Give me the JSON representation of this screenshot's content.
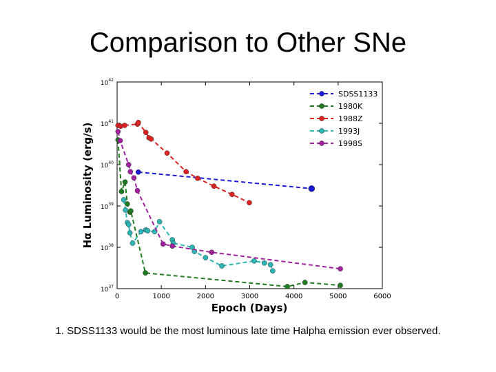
{
  "slide": {
    "title": "Comparison to Other SNe",
    "caption": "1. SDSS1133 would be the most luminous late time Halpha emission ever observed."
  },
  "chart_data": {
    "type": "scatter",
    "title": "",
    "xlabel": "Epoch (Days)",
    "ylabel": "Hα Luminosity (erg/s)",
    "xlim": [
      0,
      6000
    ],
    "ylim_log10": [
      37,
      42
    ],
    "xticks": [
      0,
      1000,
      2000,
      3000,
      4000,
      5000,
      6000
    ],
    "yticks": [
      {
        "base": "10",
        "exp": "37",
        "value": 37
      },
      {
        "base": "10",
        "exp": "38",
        "value": 38
      },
      {
        "base": "10",
        "exp": "39",
        "value": 39
      },
      {
        "base": "10",
        "exp": "40",
        "value": 40
      },
      {
        "base": "10",
        "exp": "41",
        "value": 41
      },
      {
        "base": "10",
        "exp": "42",
        "value": 42
      }
    ],
    "legend_position": "top-right",
    "series": [
      {
        "name": "SDSS1133",
        "color": "#1a1ad6",
        "marker_size": 1.0,
        "points": [
          [
            480,
            39.82
          ],
          [
            4400,
            39.42
          ]
        ],
        "big_last": true
      },
      {
        "name": "1980K",
        "color": "#1e7a1e",
        "points": [
          [
            20,
            40.6
          ],
          [
            100,
            39.35
          ],
          [
            180,
            39.58
          ],
          [
            230,
            39.05
          ],
          [
            290,
            38.85
          ],
          [
            310,
            38.88
          ],
          [
            640,
            37.38
          ],
          [
            3850,
            37.05
          ],
          [
            4250,
            37.15
          ],
          [
            5050,
            37.08
          ]
        ]
      },
      {
        "name": "1988Z",
        "color": "#dd2222",
        "points": [
          [
            20,
            40.95
          ],
          [
            80,
            40.93
          ],
          [
            170,
            40.95
          ],
          [
            460,
            40.98
          ],
          [
            480,
            41.02
          ],
          [
            650,
            40.78
          ],
          [
            720,
            40.65
          ],
          [
            770,
            40.62
          ],
          [
            1130,
            40.28
          ],
          [
            1560,
            39.83
          ],
          [
            1820,
            39.67
          ],
          [
            2190,
            39.48
          ],
          [
            2600,
            39.28
          ],
          [
            2990,
            39.08
          ]
        ]
      },
      {
        "name": "1993J",
        "color": "#2bb5b5",
        "points": [
          [
            150,
            39.15
          ],
          [
            190,
            38.9
          ],
          [
            230,
            38.6
          ],
          [
            260,
            38.55
          ],
          [
            290,
            38.35
          ],
          [
            350,
            38.1
          ],
          [
            540,
            38.38
          ],
          [
            650,
            38.42
          ],
          [
            690,
            38.4
          ],
          [
            850,
            38.38
          ],
          [
            960,
            38.62
          ],
          [
            1250,
            38.18
          ],
          [
            1270,
            38.1
          ],
          [
            1700,
            38.0
          ],
          [
            1750,
            37.9
          ],
          [
            2000,
            37.75
          ],
          [
            2370,
            37.55
          ],
          [
            3100,
            37.67
          ],
          [
            3330,
            37.62
          ],
          [
            3470,
            37.58
          ],
          [
            3520,
            37.43
          ]
        ]
      },
      {
        "name": "1998S",
        "color": "#a020a0",
        "points": [
          [
            20,
            40.8
          ],
          [
            70,
            40.58
          ],
          [
            260,
            40.0
          ],
          [
            300,
            39.83
          ],
          [
            380,
            39.68
          ],
          [
            460,
            39.37
          ],
          [
            1040,
            38.08
          ],
          [
            1250,
            38.03
          ],
          [
            2140,
            37.88
          ],
          [
            5050,
            37.48
          ]
        ]
      }
    ]
  }
}
